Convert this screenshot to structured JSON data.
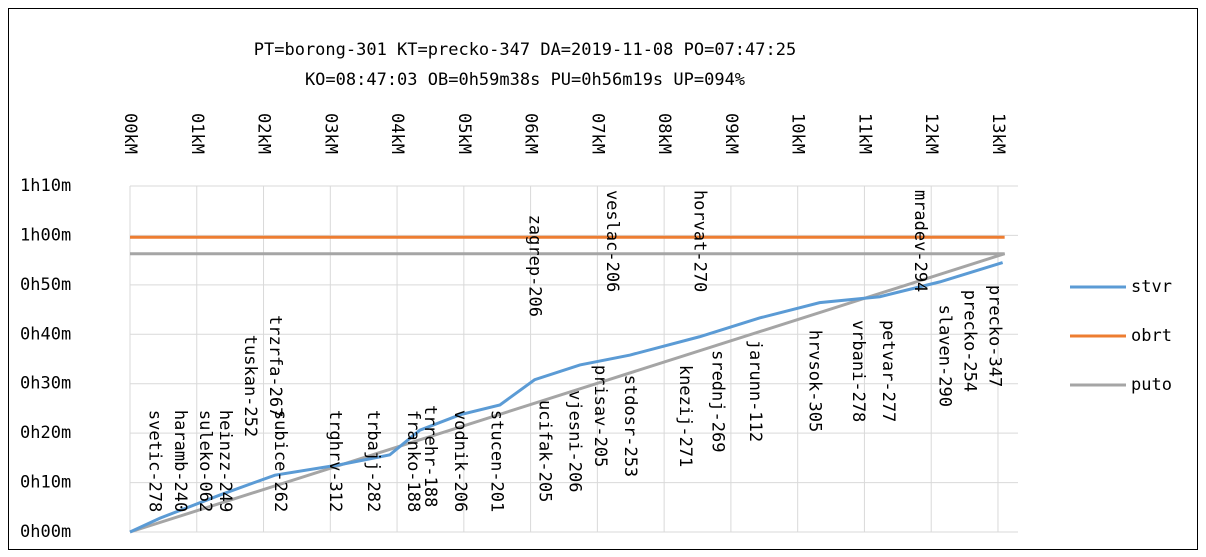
{
  "chart_data": {
    "type": "line",
    "title": [
      "PT=borong-301 KT=precko-347 DA=2019-11-08 PO=07:47:25",
      "KO=08:47:03 OB=0h59m38s PU=0h56m19s UP=094%"
    ],
    "xlim": [
      0,
      13.3
    ],
    "xticks": [
      {
        "value": 0,
        "label": "00kM"
      },
      {
        "value": 1,
        "label": "01kM"
      },
      {
        "value": 2,
        "label": "02kM"
      },
      {
        "value": 3,
        "label": "03kM"
      },
      {
        "value": 4,
        "label": "04kM"
      },
      {
        "value": 5,
        "label": "05kM"
      },
      {
        "value": 6,
        "label": "06kM"
      },
      {
        "value": 7,
        "label": "07kM"
      },
      {
        "value": 8,
        "label": "08kM"
      },
      {
        "value": 9,
        "label": "09kM"
      },
      {
        "value": 10,
        "label": "10kM"
      },
      {
        "value": 11,
        "label": "11kM"
      },
      {
        "value": 12,
        "label": "12kM"
      },
      {
        "value": 13,
        "label": "13kM"
      }
    ],
    "ylim": [
      0,
      70
    ],
    "yticks": [
      {
        "value": 0,
        "label": "0h00m"
      },
      {
        "value": 10,
        "label": "0h10m"
      },
      {
        "value": 20,
        "label": "0h20m"
      },
      {
        "value": 30,
        "label": "0h30m"
      },
      {
        "value": 40,
        "label": "0h40m"
      },
      {
        "value": 50,
        "label": "0h50m"
      },
      {
        "value": 60,
        "label": "1h00m"
      },
      {
        "value": 70,
        "label": "1h10m"
      }
    ],
    "grid": true,
    "legend": "right",
    "series": [
      {
        "name": "stvr",
        "color": "#5b9bd5",
        "x": [
          0,
          0.45,
          1.35,
          2.17,
          3.14,
          3.89,
          4.34,
          4.94,
          5.54,
          6.06,
          6.74,
          7.49,
          8.53,
          9.43,
          10.33,
          11.23,
          12.13,
          13.07
        ],
        "values": [
          0,
          2.8,
          7.5,
          11.5,
          13.6,
          15.6,
          20.6,
          23.7,
          25.7,
          30.8,
          33.8,
          35.8,
          39.5,
          43.3,
          46.4,
          47.6,
          50.6,
          54.5
        ]
      },
      {
        "name": "obrt",
        "color": "#ed7d31",
        "x": [
          0,
          13.1
        ],
        "values": [
          59.63,
          59.63
        ]
      },
      {
        "name": "puto",
        "color": "#a5a5a5",
        "x": [
          0,
          13.1,
          0
        ],
        "values": [
          0,
          56.3,
          56.3
        ]
      }
    ],
    "annotations": [
      {
        "text": "zagrep-206",
        "x": 6.06,
        "y": 64.2
      },
      {
        "text": "veslac-206",
        "x": 7.22,
        "y": 69.2
      },
      {
        "text": "horvat-270",
        "x": 8.53,
        "y": 69.2
      },
      {
        "text": "mradev-294",
        "x": 11.83,
        "y": 69.2
      },
      {
        "text": "precko-347",
        "x": 12.95,
        "y": 50.0
      },
      {
        "text": "precko-254",
        "x": 12.57,
        "y": 49.0
      },
      {
        "text": "slaven-290",
        "x": 12.2,
        "y": 46.0
      },
      {
        "text": "petvar-277",
        "x": 11.35,
        "y": 42.9
      },
      {
        "text": "vrbani-278",
        "x": 10.9,
        "y": 42.9
      },
      {
        "text": "hrvsok-305",
        "x": 10.25,
        "y": 40.9
      },
      {
        "text": "jarunn-112",
        "x": 9.36,
        "y": 38.9
      },
      {
        "text": "srednj-269",
        "x": 8.8,
        "y": 36.8
      },
      {
        "text": "knezij-271",
        "x": 8.31,
        "y": 33.8
      },
      {
        "text": "stdosr-253",
        "x": 7.49,
        "y": 31.8
      },
      {
        "text": "prisav-205",
        "x": 7.04,
        "y": 33.8
      },
      {
        "text": "vjesni-206",
        "x": 6.66,
        "y": 28.7
      },
      {
        "text": "ucifak-205",
        "x": 6.21,
        "y": 26.7
      },
      {
        "text": "stucen-201",
        "x": 5.49,
        "y": 24.7
      },
      {
        "text": "vodnik-206",
        "x": 4.94,
        "y": 24.7
      },
      {
        "text": "trrehr-188",
        "x": 4.49,
        "y": 25.7
      },
      {
        "text": "franko-188",
        "x": 4.24,
        "y": 24.7
      },
      {
        "text": "trbajj-282",
        "x": 3.64,
        "y": 24.7
      },
      {
        "text": "trghrv-312",
        "x": 3.07,
        "y": 24.7
      },
      {
        "text": "trzrfa-267",
        "x": 2.17,
        "y": 43.9
      },
      {
        "text": "subice-262",
        "x": 2.25,
        "y": 24.7
      },
      {
        "text": "tuskan-252",
        "x": 1.8,
        "y": 39.9
      },
      {
        "text": "heinzz-249",
        "x": 1.42,
        "y": 24.7
      },
      {
        "text": "suleko-062",
        "x": 1.12,
        "y": 24.7
      },
      {
        "text": "haramb-240",
        "x": 0.75,
        "y": 24.7
      },
      {
        "text": "svetic-278",
        "x": 0.37,
        "y": 24.7
      }
    ]
  }
}
